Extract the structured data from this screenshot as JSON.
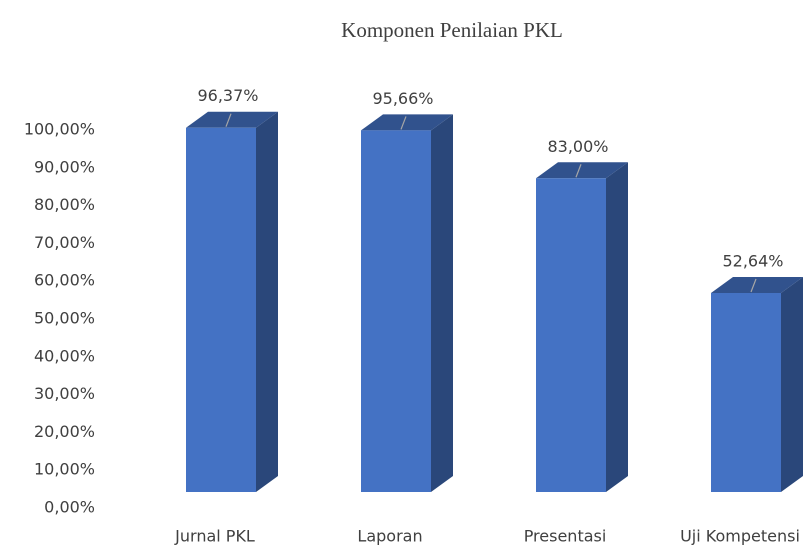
{
  "chart_data": {
    "type": "bar3d",
    "title": "Komponen Penilaian PKL",
    "categories": [
      "Jurnal PKL",
      "Laporan",
      "Presentasi",
      "Uji Kompetensi"
    ],
    "values": [
      96.37,
      95.66,
      83.0,
      52.64
    ],
    "value_labels": [
      "96,37%",
      "95,66%",
      "83,00%",
      "52,64%"
    ],
    "color": "#4472c4",
    "ylim": [
      0,
      100
    ],
    "yticks": [
      {
        "value": 0,
        "label": "0,00%"
      },
      {
        "value": 10,
        "label": "10,00%"
      },
      {
        "value": 20,
        "label": "20,00%"
      },
      {
        "value": 30,
        "label": "30,00%"
      },
      {
        "value": 40,
        "label": "40,00%"
      },
      {
        "value": 50,
        "label": "50,00%"
      },
      {
        "value": 60,
        "label": "60,00%"
      },
      {
        "value": 70,
        "label": "70,00%"
      },
      {
        "value": 80,
        "label": "80,00%"
      },
      {
        "value": 90,
        "label": "90,00%"
      },
      {
        "value": 100,
        "label": "100,00%"
      }
    ],
    "grid": false
  }
}
